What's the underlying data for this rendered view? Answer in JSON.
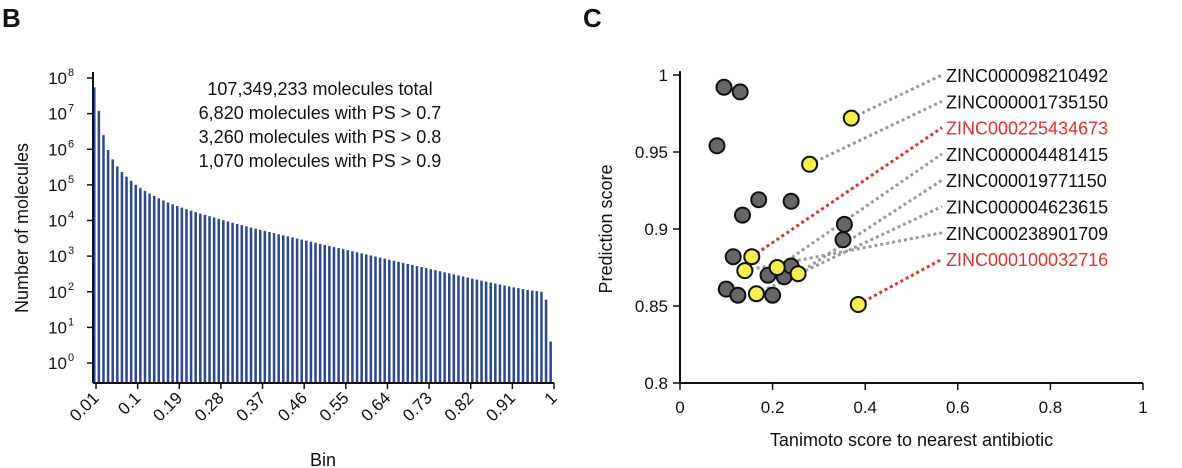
{
  "panels": {
    "B": {
      "letter": "B"
    },
    "C": {
      "letter": "C"
    }
  },
  "chart_data": [
    {
      "id": "B",
      "type": "bar",
      "title": "",
      "xlabel": "Bin",
      "ylabel": "Number of molecules",
      "yscale": "log",
      "ylim": [
        0.5,
        100000000
      ],
      "y_tick_labels": [
        "10^0",
        "10^1",
        "10^2",
        "10^3",
        "10^4",
        "10^5",
        "10^6",
        "10^7",
        "10^8"
      ],
      "x_tick_labels": [
        "0.01",
        "0.1",
        "0.19",
        "0.28",
        "0.37",
        "0.46",
        "0.55",
        "0.64",
        "0.73",
        "0.82",
        "0.91",
        "1"
      ],
      "bar_color": "#2f4a8c",
      "bins": [
        0.01,
        0.02,
        0.03,
        0.04,
        0.05,
        0.06,
        0.07,
        0.08,
        0.09,
        0.1,
        0.11,
        0.12,
        0.13,
        0.14,
        0.15,
        0.16,
        0.17,
        0.18,
        0.19,
        0.2,
        0.21,
        0.22,
        0.23,
        0.24,
        0.25,
        0.26,
        0.27,
        0.28,
        0.29,
        0.3,
        0.31,
        0.32,
        0.33,
        0.34,
        0.35,
        0.36,
        0.37,
        0.38,
        0.39,
        0.4,
        0.41,
        0.42,
        0.43,
        0.44,
        0.45,
        0.46,
        0.47,
        0.48,
        0.49,
        0.5,
        0.51,
        0.52,
        0.53,
        0.54,
        0.55,
        0.56,
        0.57,
        0.58,
        0.59,
        0.6,
        0.61,
        0.62,
        0.63,
        0.64,
        0.65,
        0.66,
        0.67,
        0.68,
        0.69,
        0.7,
        0.71,
        0.72,
        0.73,
        0.74,
        0.75,
        0.76,
        0.77,
        0.78,
        0.79,
        0.8,
        0.81,
        0.82,
        0.83,
        0.84,
        0.85,
        0.86,
        0.87,
        0.88,
        0.89,
        0.9,
        0.91,
        0.92,
        0.93,
        0.94,
        0.95,
        0.96,
        0.97,
        0.98,
        0.99,
        1
      ],
      "values": [
        55000000,
        12000000,
        2500000,
        950000,
        520000,
        330000,
        230000,
        170000,
        130000,
        100000,
        82000,
        68000,
        57000,
        49000,
        42000,
        36500,
        32000,
        28500,
        25500,
        23000,
        20800,
        18900,
        17200,
        15700,
        14400,
        13200,
        12100,
        11100,
        10200,
        9400,
        8700,
        8000,
        7400,
        6850,
        6350,
        5900,
        5480,
        5100,
        4750,
        4420,
        4120,
        3840,
        3580,
        3340,
        3120,
        2910,
        2720,
        2540,
        2370,
        2210,
        2060,
        1930,
        1800,
        1680,
        1570,
        1470,
        1370,
        1280,
        1200,
        1120,
        1045,
        975,
        910,
        850,
        795,
        742,
        693,
        647,
        604,
        564,
        527,
        492,
        460,
        430,
        402,
        376,
        351,
        328,
        307,
        287,
        268,
        251,
        235,
        220,
        206,
        193,
        181,
        170,
        160,
        150,
        141,
        133,
        126,
        119,
        113,
        108,
        104,
        100,
        60,
        4
      ],
      "annotations": [
        "107,349,233 molecules total",
        "6,820 molecules with PS > 0.7",
        "3,260 molecules with PS > 0.8",
        "1,070 molecules with PS > 0.9"
      ]
    },
    {
      "id": "C",
      "type": "scatter",
      "title": "",
      "xlabel": "Tanimoto score to nearest antibiotic",
      "ylabel": "Prediction score",
      "xlim": [
        0,
        1
      ],
      "ylim": [
        0.8,
        1
      ],
      "x_tick_labels": [
        "0",
        "0.2",
        "0.4",
        "0.6",
        "0.8",
        "1"
      ],
      "x_ticks": [
        0,
        0.2,
        0.4,
        0.6,
        0.8,
        1
      ],
      "y_tick_labels": [
        "0.8",
        "0.85",
        "0.9",
        "0.95",
        "1"
      ],
      "y_ticks": [
        0.8,
        0.85,
        0.9,
        0.95,
        1
      ],
      "grey_color": "#666666",
      "yellow_color": "#f5ef4c",
      "points": [
        {
          "x": 0.095,
          "y": 0.992,
          "group": "grey"
        },
        {
          "x": 0.13,
          "y": 0.989,
          "group": "grey"
        },
        {
          "x": 0.08,
          "y": 0.954,
          "group": "grey"
        },
        {
          "x": 0.17,
          "y": 0.919,
          "group": "grey"
        },
        {
          "x": 0.135,
          "y": 0.909,
          "group": "grey"
        },
        {
          "x": 0.24,
          "y": 0.918,
          "group": "grey"
        },
        {
          "x": 0.355,
          "y": 0.903,
          "group": "grey"
        },
        {
          "x": 0.352,
          "y": 0.893,
          "group": "grey"
        },
        {
          "x": 0.115,
          "y": 0.882,
          "group": "grey"
        },
        {
          "x": 0.19,
          "y": 0.87,
          "group": "grey"
        },
        {
          "x": 0.225,
          "y": 0.869,
          "group": "grey"
        },
        {
          "x": 0.24,
          "y": 0.876,
          "group": "grey"
        },
        {
          "x": 0.1,
          "y": 0.861,
          "group": "grey"
        },
        {
          "x": 0.125,
          "y": 0.857,
          "group": "grey"
        },
        {
          "x": 0.2,
          "y": 0.857,
          "group": "grey"
        },
        {
          "x": 0.37,
          "y": 0.972,
          "group": "yellow"
        },
        {
          "x": 0.28,
          "y": 0.942,
          "group": "yellow"
        },
        {
          "x": 0.155,
          "y": 0.882,
          "group": "yellow"
        },
        {
          "x": 0.14,
          "y": 0.873,
          "group": "yellow"
        },
        {
          "x": 0.21,
          "y": 0.875,
          "group": "yellow"
        },
        {
          "x": 0.255,
          "y": 0.871,
          "group": "yellow"
        },
        {
          "x": 0.165,
          "y": 0.858,
          "group": "yellow"
        },
        {
          "x": 0.385,
          "y": 0.851,
          "group": "yellow"
        }
      ],
      "labels": [
        {
          "text": "ZINC000098210492",
          "color": "#111111",
          "from": [
            0.37,
            0.972
          ]
        },
        {
          "text": "ZINC000001735150",
          "color": "#111111",
          "from": [
            0.28,
            0.942
          ]
        },
        {
          "text": "ZINC000225434673",
          "color": "#e03030",
          "from": [
            0.155,
            0.882
          ]
        },
        {
          "text": "ZINC000004481415",
          "color": "#111111",
          "from": [
            0.21,
            0.875
          ]
        },
        {
          "text": "ZINC000019771150",
          "color": "#111111",
          "from": [
            0.255,
            0.871
          ]
        },
        {
          "text": "ZINC000004623615",
          "color": "#111111",
          "from": [
            0.165,
            0.858
          ]
        },
        {
          "text": "ZINC000238901709",
          "color": "#111111",
          "from": [
            0.14,
            0.873
          ]
        },
        {
          "text": "ZINC000100032716",
          "color": "#e03030",
          "from": [
            0.385,
            0.851
          ]
        }
      ]
    }
  ]
}
